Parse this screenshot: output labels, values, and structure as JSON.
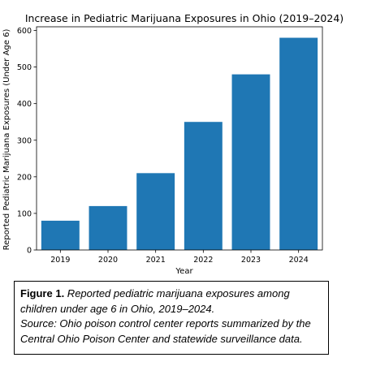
{
  "chart_data": {
    "type": "bar",
    "title": "Increase in Pediatric Marijuana Exposures in Ohio (2019–2024)",
    "xlabel": "Year",
    "ylabel": "Reported Pediatric Marijuana Exposures (Under Age 6)",
    "categories": [
      "2019",
      "2020",
      "2021",
      "2022",
      "2023",
      "2024"
    ],
    "values": [
      80,
      120,
      210,
      350,
      480,
      580
    ],
    "ylim": [
      0,
      610
    ],
    "yticks": [
      0,
      100,
      200,
      300,
      400,
      500,
      600
    ],
    "bar_color": "#1f77b4",
    "grid": false,
    "legend": "none"
  },
  "caption": {
    "label": "Figure 1.",
    "text": " Reported pediatric marijuana exposures among children under age 6 in Ohio, 2019–2024.",
    "source": "Source: Ohio poison control center reports summarized by the Central Ohio Poison Center and statewide surveillance data."
  }
}
